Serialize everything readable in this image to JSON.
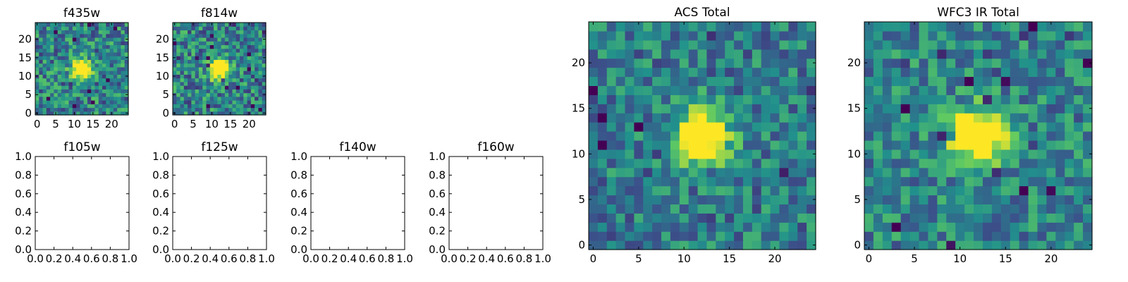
{
  "figure": {
    "background": "#ffffff"
  },
  "colormap": {
    "name": "viridis",
    "stops": [
      "#440154",
      "#3b528b",
      "#21918c",
      "#5ec962",
      "#fde725"
    ]
  },
  "chart_data": [
    {
      "id": "f435w",
      "type": "heatmap",
      "title": "f435w",
      "grid_size": [
        25,
        25
      ],
      "xlim": [
        -0.5,
        24.5
      ],
      "ylim": [
        -0.5,
        24.5
      ],
      "xticks": [
        "0",
        "5",
        "10",
        "15",
        "20"
      ],
      "xtick_values": [
        0,
        5,
        10,
        15,
        20
      ],
      "yticks": [
        "0",
        "5",
        "10",
        "15",
        "20"
      ],
      "ytick_values": [
        0,
        5,
        10,
        15,
        20
      ],
      "source": {
        "center": [
          12,
          12
        ],
        "peak": 1.0,
        "sigma": 1.8,
        "noise": 0.55,
        "base": 0.45,
        "seed": 11
      }
    },
    {
      "id": "f814w",
      "type": "heatmap",
      "title": "f814w",
      "grid_size": [
        25,
        25
      ],
      "xlim": [
        -0.5,
        24.5
      ],
      "ylim": [
        -0.5,
        24.5
      ],
      "xticks": [
        "0",
        "5",
        "10",
        "15",
        "20"
      ],
      "xtick_values": [
        0,
        5,
        10,
        15,
        20
      ],
      "yticks": [
        "0",
        "5",
        "10",
        "15",
        "20"
      ],
      "ytick_values": [
        0,
        5,
        10,
        15,
        20
      ],
      "source": {
        "center": [
          12,
          12
        ],
        "peak": 1.0,
        "sigma": 1.9,
        "noise": 0.55,
        "base": 0.45,
        "seed": 27
      }
    },
    {
      "id": "f105w",
      "type": "scatter",
      "title": "f105w",
      "empty": true,
      "xlim": [
        0,
        1
      ],
      "ylim": [
        0,
        1
      ],
      "xticks": [
        "0.0",
        "0.2",
        "0.4",
        "0.6",
        "0.8",
        "1.0"
      ],
      "xtick_values": [
        0,
        0.2,
        0.4,
        0.6,
        0.8,
        1.0
      ],
      "yticks": [
        "0.0",
        "0.2",
        "0.4",
        "0.6",
        "0.8",
        "1.0"
      ],
      "ytick_values": [
        0,
        0.2,
        0.4,
        0.6,
        0.8,
        1.0
      ]
    },
    {
      "id": "f125w",
      "type": "scatter",
      "title": "f125w",
      "empty": true,
      "xlim": [
        0,
        1
      ],
      "ylim": [
        0,
        1
      ],
      "xticks": [
        "0.0",
        "0.2",
        "0.4",
        "0.6",
        "0.8",
        "1.0"
      ],
      "xtick_values": [
        0,
        0.2,
        0.4,
        0.6,
        0.8,
        1.0
      ],
      "yticks": [
        "0.0",
        "0.2",
        "0.4",
        "0.6",
        "0.8",
        "1.0"
      ],
      "ytick_values": [
        0,
        0.2,
        0.4,
        0.6,
        0.8,
        1.0
      ]
    },
    {
      "id": "f140w",
      "type": "scatter",
      "title": "f140w",
      "empty": true,
      "xlim": [
        0,
        1
      ],
      "ylim": [
        0,
        1
      ],
      "xticks": [
        "0.0",
        "0.2",
        "0.4",
        "0.6",
        "0.8",
        "1.0"
      ],
      "xtick_values": [
        0,
        0.2,
        0.4,
        0.6,
        0.8,
        1.0
      ],
      "yticks": [
        "0.0",
        "0.2",
        "0.4",
        "0.6",
        "0.8",
        "1.0"
      ],
      "ytick_values": [
        0,
        0.2,
        0.4,
        0.6,
        0.8,
        1.0
      ]
    },
    {
      "id": "f160w",
      "type": "scatter",
      "title": "f160w",
      "empty": true,
      "xlim": [
        0,
        1
      ],
      "ylim": [
        0,
        1
      ],
      "xticks": [
        "0.0",
        "0.2",
        "0.4",
        "0.6",
        "0.8",
        "1.0"
      ],
      "xtick_values": [
        0,
        0.2,
        0.4,
        0.6,
        0.8,
        1.0
      ],
      "yticks": [
        "0.0",
        "0.2",
        "0.4",
        "0.6",
        "0.8",
        "1.0"
      ],
      "ytick_values": [
        0,
        0.2,
        0.4,
        0.6,
        0.8,
        1.0
      ]
    },
    {
      "id": "acs_total",
      "type": "heatmap",
      "title": "ACS Total",
      "grid_size": [
        25,
        25
      ],
      "xlim": [
        -0.5,
        24.5
      ],
      "ylim": [
        -0.5,
        24.5
      ],
      "xticks": [
        "0",
        "5",
        "10",
        "15",
        "20"
      ],
      "xtick_values": [
        0,
        5,
        10,
        15,
        20
      ],
      "yticks": [
        "0",
        "5",
        "10",
        "15",
        "20"
      ],
      "ytick_values": [
        0,
        5,
        10,
        15,
        20
      ],
      "source": {
        "center": [
          12,
          12
        ],
        "peak": 1.0,
        "sigma": 2.0,
        "noise": 0.45,
        "base": 0.42,
        "seed": 5
      }
    },
    {
      "id": "wfc3_ir_total",
      "type": "heatmap",
      "title": "WFC3 IR Total",
      "grid_size": [
        25,
        25
      ],
      "xlim": [
        -0.5,
        24.5
      ],
      "ylim": [
        -0.5,
        24.5
      ],
      "xticks": [
        "0",
        "5",
        "10",
        "15",
        "20"
      ],
      "xtick_values": [
        0,
        5,
        10,
        15,
        20
      ],
      "yticks": [
        "0",
        "5",
        "10",
        "15",
        "20"
      ],
      "ytick_values": [
        0,
        5,
        10,
        15,
        20
      ],
      "source": {
        "center": [
          12,
          12
        ],
        "peak": 1.0,
        "sigma": 2.0,
        "noise": 0.45,
        "base": 0.45,
        "seed": 41
      }
    }
  ]
}
